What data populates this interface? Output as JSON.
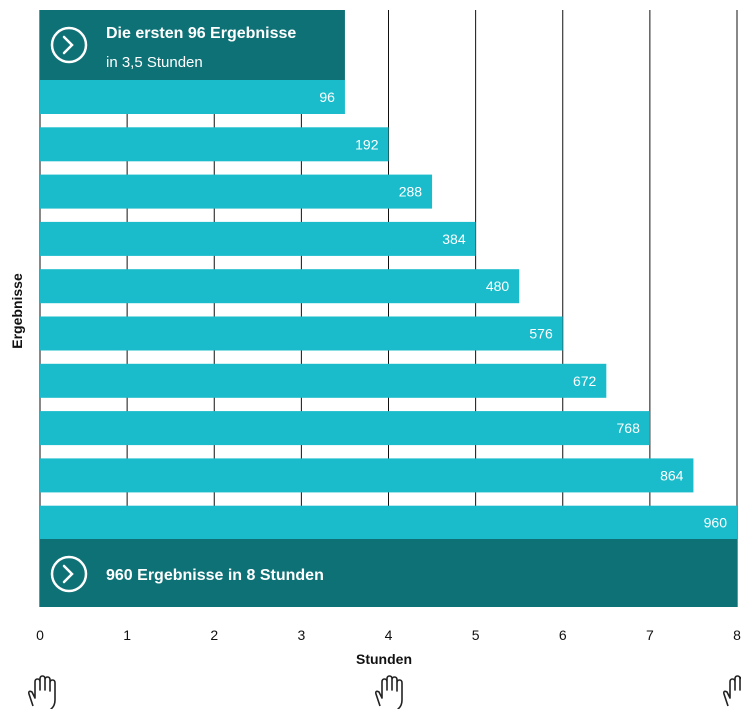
{
  "chart_data": {
    "type": "bar",
    "orientation": "horizontal",
    "xlabel": "Stunden",
    "ylabel": "Ergebnisse",
    "xlim": [
      0,
      8
    ],
    "xticks": [
      "0",
      "1",
      "2",
      "3",
      "4",
      "5",
      "6",
      "7",
      "8"
    ],
    "grid": true,
    "bar_color": "#1ABCCB",
    "banner_color": "#0E7176",
    "series": [
      {
        "categories": [
          "96",
          "192",
          "288",
          "384",
          "480",
          "576",
          "672",
          "768",
          "864",
          "960"
        ],
        "values": [
          3.5,
          4.0,
          4.5,
          5.0,
          5.5,
          6.0,
          6.5,
          7.0,
          7.5,
          8.0
        ]
      }
    ],
    "annotations": {
      "top": {
        "title": "Die ersten 96 Ergebnisse",
        "subtitle": "in 3,5 Stunden",
        "icon": "chevron-right-circle-icon"
      },
      "bottom": {
        "title": "960 Ergebnisse in 8 Stunden",
        "icon": "chevron-right-circle-icon"
      }
    },
    "footer_icons": [
      "hand-icon",
      "hand-icon",
      "hand-icon"
    ]
  }
}
